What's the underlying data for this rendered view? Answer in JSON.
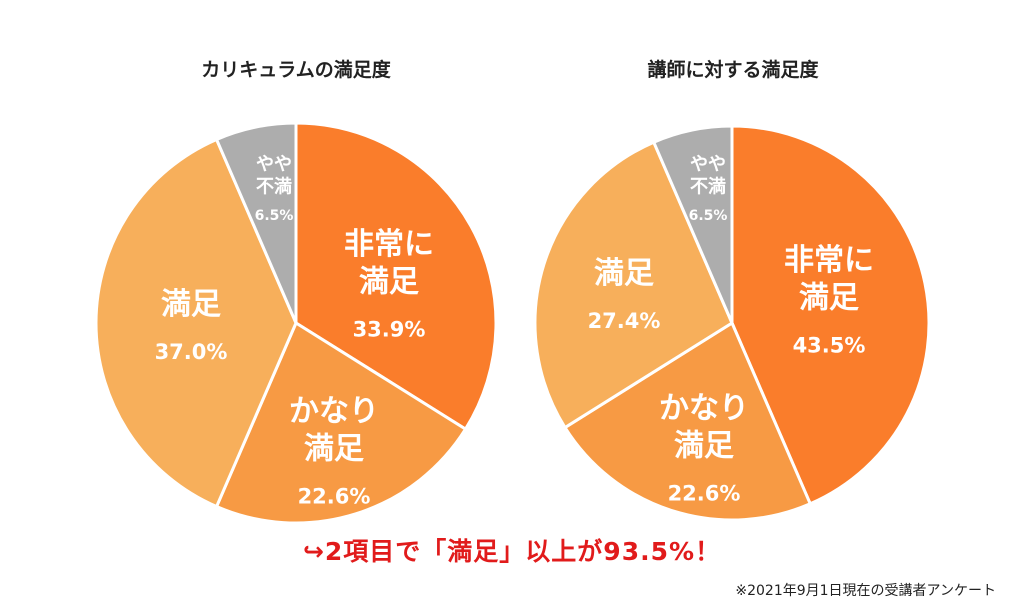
{
  "chart_data": [
    {
      "type": "pie",
      "title": "カリキュラムの満足度",
      "start": "12 o'clock",
      "direction": "clockwise",
      "slices": [
        {
          "label_lines": [
            "非常に",
            "満足"
          ],
          "value": 33.9,
          "value_label": "33.9%",
          "color": "#fa7d2b"
        },
        {
          "label_lines": [
            "かなり",
            "満足"
          ],
          "value": 22.6,
          "value_label": "22.6%",
          "color": "#f79a44"
        },
        {
          "label_lines": [
            "満足"
          ],
          "value": 37.0,
          "value_label": "37.0%",
          "color": "#f7af5b"
        },
        {
          "label_lines": [
            "やや",
            "不満"
          ],
          "value": 6.5,
          "value_label": "6.5%",
          "color": "#adadad"
        }
      ]
    },
    {
      "type": "pie",
      "title": "講師に対する満足度",
      "start": "12 o'clock",
      "direction": "clockwise",
      "slices": [
        {
          "label_lines": [
            "非常に",
            "満足"
          ],
          "value": 43.5,
          "value_label": "43.5%",
          "color": "#fa7d2b"
        },
        {
          "label_lines": [
            "かなり",
            "満足"
          ],
          "value": 22.6,
          "value_label": "22.6%",
          "color": "#f79a44"
        },
        {
          "label_lines": [
            "満足"
          ],
          "value": 27.4,
          "value_label": "27.4%",
          "color": "#f7af5b"
        },
        {
          "label_lines": [
            "やや",
            "不満"
          ],
          "value": 6.5,
          "value_label": "6.5%",
          "color": "#adadad"
        }
      ]
    }
  ],
  "headline": "↪2項目で「満足」以上が93.5%！",
  "footnote": "※2021年9月1日現在の受講者アンケート"
}
